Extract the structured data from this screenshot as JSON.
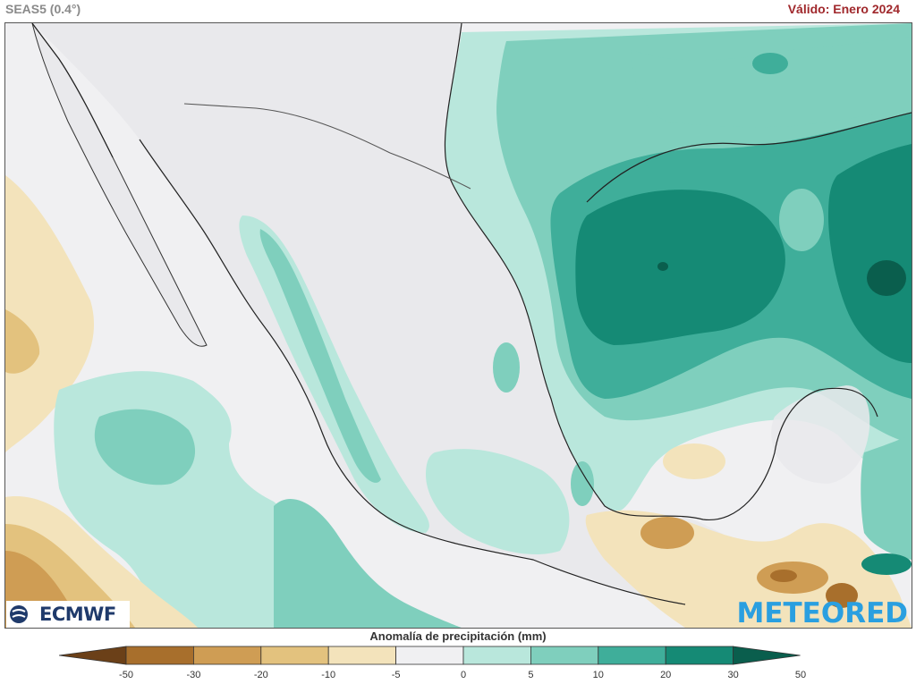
{
  "header": {
    "model": "SEAS5 (0.4°)",
    "valid": "Válido: Enero 2024"
  },
  "logos": {
    "ecmwf": "ECMWF",
    "meteored": "METEORED"
  },
  "legend": {
    "title": "Anomalía de precipitación (mm)",
    "ticks": [
      "-50",
      "-30",
      "-20",
      "-10",
      "-5",
      "0",
      "5",
      "10",
      "20",
      "30",
      "50"
    ],
    "bins": [
      {
        "range": "<-50",
        "color": "#6b4018"
      },
      {
        "range": "-50 a -30",
        "color": "#a86f2c"
      },
      {
        "range": "-30 a -20",
        "color": "#cf9d54"
      },
      {
        "range": "-20 a -10",
        "color": "#e3c27e"
      },
      {
        "range": "-10 a -5",
        "color": "#f3e3bb"
      },
      {
        "range": "-5 a 5",
        "color": "#f0f0f2"
      },
      {
        "range": "5 a 10",
        "color": "#b9e7dc"
      },
      {
        "range": "10 a 20",
        "color": "#7fcfbd"
      },
      {
        "range": "20 a 30",
        "color": "#3fae9a"
      },
      {
        "range": "30 a 50",
        "color": "#158a75"
      },
      {
        "range": ">50",
        "color": "#0a5e4d"
      }
    ]
  }
}
